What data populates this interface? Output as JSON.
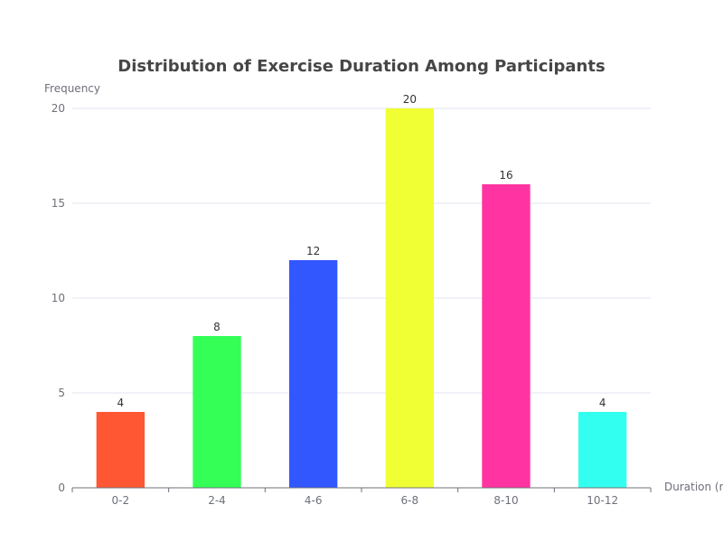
{
  "chart_data": {
    "type": "bar",
    "title": "Distribution of Exercise Duration Among Participants",
    "xlabel": "Duration (m",
    "ylabel": "Frequency",
    "categories": [
      "0-2",
      "2-4",
      "4-6",
      "6-8",
      "8-10",
      "10-12"
    ],
    "values": [
      4,
      8,
      12,
      20,
      16,
      4
    ],
    "colors": [
      "#ff5733",
      "#33ff57",
      "#3357ff",
      "#f0ff33",
      "#ff33a1",
      "#33fff0"
    ],
    "ylim": [
      0,
      20
    ],
    "yticks": [
      0,
      5,
      10,
      15,
      20
    ],
    "grid": true,
    "legend": "none"
  }
}
